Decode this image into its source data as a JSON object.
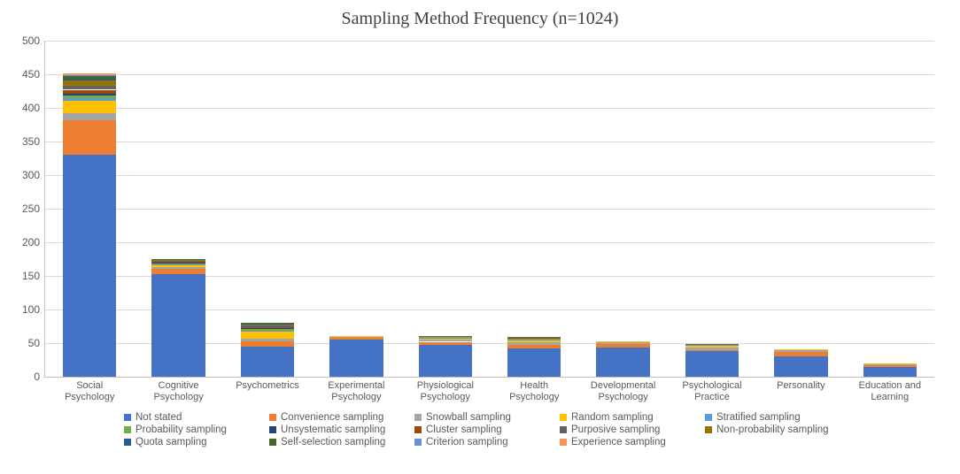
{
  "chart": {
    "type": "stacked-bar",
    "title": "Sampling Method Frequency (n=1024)",
    "title_fontsize": 20,
    "title_color": "#404040",
    "background_color": "#ffffff",
    "grid_color": "#d9d9d9",
    "axis_color": "#bfbfbf",
    "label_color": "#595959",
    "label_fontsize": 12,
    "xcat_fontsize": 11,
    "ylim": [
      0,
      500
    ],
    "ytick_step": 50,
    "bar_width": 0.6,
    "categories": [
      "Social Psychology",
      "Cognitive Psychology",
      "Psychometrics",
      "Experimental Psychology",
      "Physiological Psychology",
      "Health Psychology",
      "Developmental Psychology",
      "Psychological Practice",
      "Personality",
      "Education and Learning"
    ],
    "series": [
      {
        "name": "Not stated",
        "color": "#4472c4",
        "values": [
          330,
          152,
          45,
          55,
          48,
          42,
          44,
          38,
          30,
          14
        ]
      },
      {
        "name": "Convenience sampling",
        "color": "#ed7d31",
        "values": [
          52,
          8,
          8,
          3,
          4,
          6,
          5,
          2,
          7,
          3
        ]
      },
      {
        "name": "Snowball sampling",
        "color": "#a5a5a5",
        "values": [
          10,
          3,
          4,
          1,
          3,
          3,
          2,
          4,
          2,
          1
        ]
      },
      {
        "name": "Random sampling",
        "color": "#ffc000",
        "values": [
          18,
          3,
          10,
          1,
          2,
          3,
          1,
          2,
          2,
          1
        ]
      },
      {
        "name": "Stratified sampling",
        "color": "#5b9bd5",
        "values": [
          4,
          1,
          2,
          0,
          1,
          1,
          0,
          1,
          0,
          0
        ]
      },
      {
        "name": "Probability sampling",
        "color": "#70ad47",
        "values": [
          4,
          2,
          2,
          0,
          1,
          1,
          0,
          1,
          0,
          0
        ]
      },
      {
        "name": "Unsystematic sampling",
        "color": "#264478",
        "values": [
          3,
          1,
          1,
          0,
          0,
          1,
          0,
          0,
          0,
          0
        ]
      },
      {
        "name": "Cluster sampling",
        "color": "#9e480e",
        "values": [
          6,
          1,
          2,
          0,
          0,
          1,
          0,
          0,
          0,
          0
        ]
      },
      {
        "name": "Purposive sampling",
        "color": "#636363",
        "values": [
          6,
          1,
          2,
          0,
          1,
          1,
          0,
          1,
          0,
          0
        ]
      },
      {
        "name": "Non-probability sampling",
        "color": "#997300",
        "values": [
          8,
          2,
          2,
          0,
          0,
          0,
          0,
          0,
          0,
          0
        ]
      },
      {
        "name": "Quota sampling",
        "color": "#255e91",
        "values": [
          2,
          0,
          1,
          0,
          0,
          0,
          0,
          0,
          0,
          0
        ]
      },
      {
        "name": "Self-selection sampling",
        "color": "#43682b",
        "values": [
          4,
          1,
          1,
          0,
          0,
          0,
          0,
          0,
          0,
          0
        ]
      },
      {
        "name": "Criterion sampling",
        "color": "#698ed0",
        "values": [
          2,
          0,
          0,
          0,
          0,
          0,
          0,
          0,
          0,
          0
        ]
      },
      {
        "name": "Experience sampling",
        "color": "#f1975a",
        "values": [
          2,
          0,
          0,
          0,
          0,
          0,
          0,
          0,
          0,
          0
        ]
      }
    ],
    "legend": {
      "rows": 3,
      "cols": 5,
      "swatch_size": 8,
      "fontsize": 11.5
    }
  }
}
